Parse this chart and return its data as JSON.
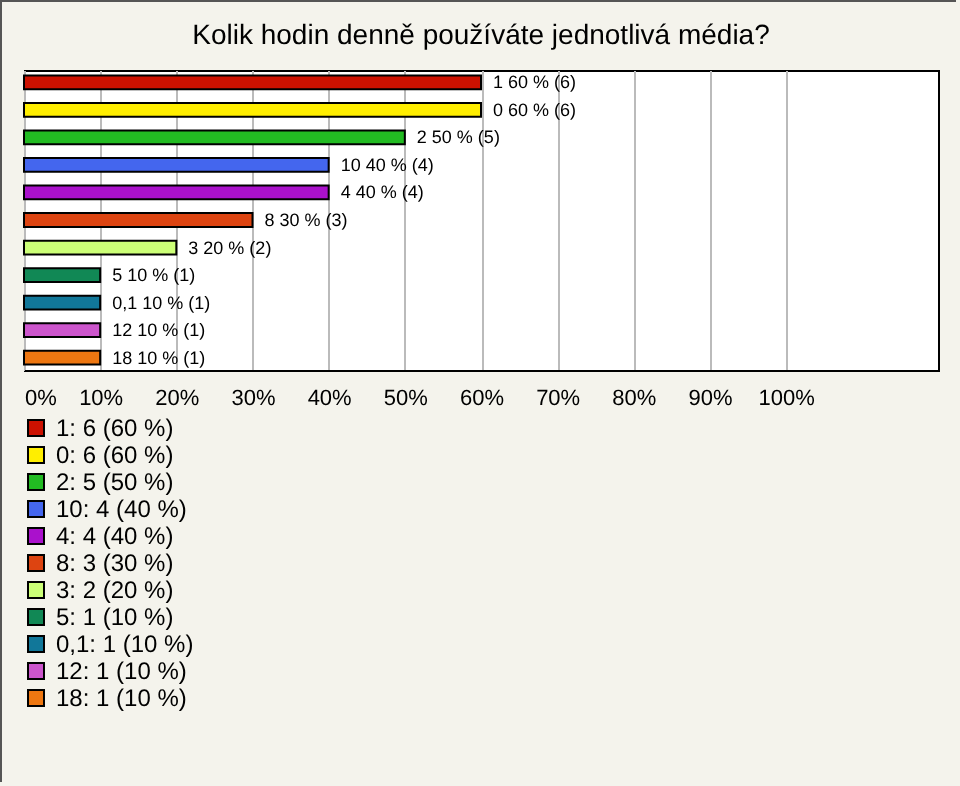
{
  "chart_data": {
    "type": "bar",
    "orientation": "horizontal",
    "title": "Kolik hodin denně používáte jednotlivá média?",
    "categories": [
      null,
      null,
      null,
      null,
      null,
      null,
      null,
      null,
      null,
      null,
      null
    ],
    "series": [
      {
        "name": "1: 6 (60 %)",
        "color": "#cc1100",
        "values": [
          60,
          null,
          null,
          null,
          null,
          null,
          null,
          null,
          null,
          null,
          null
        ],
        "value_labels": [
          "1 60 % (6)",
          null,
          null,
          null,
          null,
          null,
          null,
          null,
          null,
          null,
          null
        ]
      },
      {
        "name": "0: 6 (60 %)",
        "color": "#ffee00",
        "values": [
          null,
          60,
          null,
          null,
          null,
          null,
          null,
          null,
          null,
          null,
          null
        ],
        "value_labels": [
          null,
          "0 60 % (6)",
          null,
          null,
          null,
          null,
          null,
          null,
          null,
          null,
          null
        ]
      },
      {
        "name": "2: 5 (50 %)",
        "color": "#22bb22",
        "values": [
          null,
          null,
          50,
          null,
          null,
          null,
          null,
          null,
          null,
          null,
          null
        ],
        "value_labels": [
          null,
          null,
          "2 50 % (5)",
          null,
          null,
          null,
          null,
          null,
          null,
          null,
          null
        ]
      },
      {
        "name": "10: 4 (40 %)",
        "color": "#4466ee",
        "values": [
          null,
          null,
          null,
          40,
          null,
          null,
          null,
          null,
          null,
          null,
          null
        ],
        "value_labels": [
          null,
          null,
          null,
          "10 40 % (4)",
          null,
          null,
          null,
          null,
          null,
          null,
          null
        ]
      },
      {
        "name": "4: 4 (40 %)",
        "color": "#aa11cc",
        "values": [
          null,
          null,
          null,
          null,
          40,
          null,
          null,
          null,
          null,
          null,
          null
        ],
        "value_labels": [
          null,
          null,
          null,
          null,
          "4 40 % (4)",
          null,
          null,
          null,
          null,
          null,
          null
        ]
      },
      {
        "name": "8: 3 (30 %)",
        "color": "#dd4411",
        "values": [
          null,
          null,
          null,
          null,
          null,
          30,
          null,
          null,
          null,
          null,
          null
        ],
        "value_labels": [
          null,
          null,
          null,
          null,
          null,
          "8 30 % (3)",
          null,
          null,
          null,
          null,
          null
        ]
      },
      {
        "name": "3: 2 (20 %)",
        "color": "#ccff77",
        "values": [
          null,
          null,
          null,
          null,
          null,
          null,
          20,
          null,
          null,
          null,
          null
        ],
        "value_labels": [
          null,
          null,
          null,
          null,
          null,
          null,
          "3 20 % (2)",
          null,
          null,
          null,
          null
        ]
      },
      {
        "name": "5: 1 (10 %)",
        "color": "#118855",
        "values": [
          null,
          null,
          null,
          null,
          null,
          null,
          null,
          10,
          null,
          null,
          null
        ],
        "value_labels": [
          null,
          null,
          null,
          null,
          null,
          null,
          null,
          "5 10 % (1)",
          null,
          null,
          null
        ]
      },
      {
        "name": "0,1: 1 (10 %)",
        "color": "#117799",
        "values": [
          null,
          null,
          null,
          null,
          null,
          null,
          null,
          null,
          10,
          null,
          null
        ],
        "value_labels": [
          null,
          null,
          null,
          null,
          null,
          null,
          null,
          null,
          "0,1 10 % (1)",
          null,
          null
        ]
      },
      {
        "name": "12: 1 (10 %)",
        "color": "#cc55cc",
        "values": [
          null,
          null,
          null,
          null,
          null,
          null,
          null,
          null,
          null,
          10,
          null
        ],
        "value_labels": [
          null,
          null,
          null,
          null,
          null,
          null,
          null,
          null,
          null,
          "12 10 % (1)",
          null
        ]
      },
      {
        "name": "18: 1 (10 %)",
        "color": "#ee7711",
        "values": [
          null,
          null,
          null,
          null,
          null,
          null,
          null,
          null,
          null,
          null,
          10
        ],
        "value_labels": [
          null,
          null,
          null,
          null,
          null,
          null,
          null,
          null,
          null,
          null,
          "18 10 % (1)"
        ]
      }
    ],
    "xlim": [
      0,
      120
    ],
    "xticks": [
      {
        "value": 0,
        "label": "0%"
      },
      {
        "value": 10,
        "label": "10%"
      },
      {
        "value": 20,
        "label": "20%"
      },
      {
        "value": 30,
        "label": "30%"
      },
      {
        "value": 40,
        "label": "40%"
      },
      {
        "value": 50,
        "label": "50%"
      },
      {
        "value": 60,
        "label": "60%"
      },
      {
        "value": 70,
        "label": "70%"
      },
      {
        "value": 80,
        "label": "80%"
      },
      {
        "value": 90,
        "label": "90%"
      },
      {
        "value": 100,
        "label": "100%"
      }
    ],
    "grid": "x",
    "legend": "bottom",
    "tick_labels": "x"
  }
}
